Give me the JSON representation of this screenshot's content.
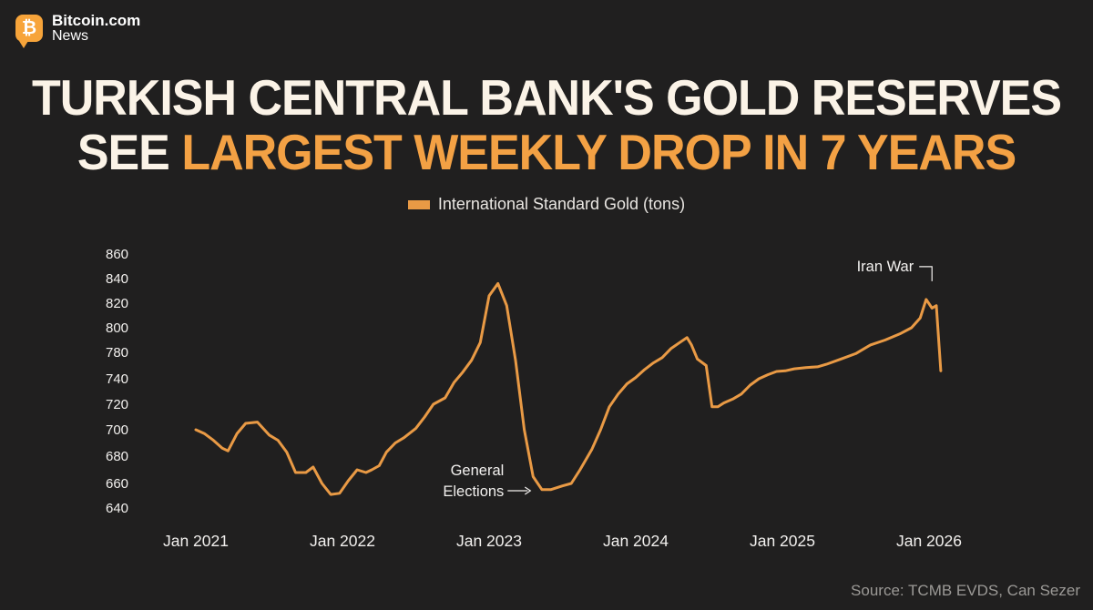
{
  "brand": {
    "name": "Bitcoin.com",
    "sub": "News",
    "badge_symbol": "₿",
    "accent": "#f7a43a"
  },
  "headline": {
    "line1": "TURKISH CENTRAL BANK'S GOLD RESERVES",
    "line2_prefix": "SEE ",
    "line2_highlight": "LARGEST WEEKLY DROP IN 7 YEARS",
    "color_light": "#fbf3e7",
    "color_accent": "#f3a144"
  },
  "source": "Source: TCMB EVDS, Can Sezer",
  "chart_data": {
    "type": "line",
    "title": "",
    "xlabel": "",
    "ylabel": "",
    "legend": "top-center",
    "grid": false,
    "line_color": "#e99a45",
    "y_ticks": [
      860,
      840,
      820,
      800,
      780,
      740,
      720,
      700,
      680,
      660,
      640
    ],
    "x_ticks": [
      {
        "label": "Jan 2021",
        "x": 2021.0
      },
      {
        "label": "Jan 2022",
        "x": 2022.0
      },
      {
        "label": "Jan 2023",
        "x": 2023.0
      },
      {
        "label": "Jan 2024",
        "x": 2024.0
      },
      {
        "label": "Jan 2025",
        "x": 2025.0
      },
      {
        "label": "Jan 2026",
        "x": 2026.0
      }
    ],
    "series": [
      {
        "name": "International Standard Gold (tons)",
        "x": [
          2021.0,
          2021.06,
          2021.12,
          2021.18,
          2021.22,
          2021.28,
          2021.34,
          2021.42,
          2021.5,
          2021.56,
          2021.62,
          2021.68,
          2021.75,
          2021.8,
          2021.86,
          2021.92,
          2021.98,
          2022.04,
          2022.1,
          2022.16,
          2022.2,
          2022.25,
          2022.3,
          2022.36,
          2022.42,
          2022.5,
          2022.56,
          2022.62,
          2022.7,
          2022.76,
          2022.82,
          2022.88,
          2022.94,
          2023.0,
          2023.06,
          2023.12,
          2023.18,
          2023.24,
          2023.3,
          2023.36,
          2023.42,
          2023.5,
          2023.56,
          2023.62,
          2023.7,
          2023.76,
          2023.82,
          2023.88,
          2023.94,
          2024.0,
          2024.06,
          2024.12,
          2024.18,
          2024.24,
          2024.3,
          2024.35,
          2024.38,
          2024.42,
          2024.48,
          2024.52,
          2024.56,
          2024.6,
          2024.66,
          2024.72,
          2024.78,
          2024.84,
          2024.9,
          2024.96,
          2025.02,
          2025.08,
          2025.16,
          2025.24,
          2025.3,
          2025.4,
          2025.5,
          2025.6,
          2025.7,
          2025.8,
          2025.88,
          2025.94,
          2025.98,
          2026.02,
          2026.05,
          2026.08
        ],
        "values": [
          700,
          697,
          692,
          686,
          684,
          697,
          705,
          706,
          696,
          692,
          683,
          668,
          668,
          672,
          660,
          651,
          652,
          662,
          670,
          668,
          670,
          673,
          683,
          690,
          694,
          701,
          710,
          720,
          725,
          737,
          750,
          768,
          788,
          826,
          836,
          818,
          768,
          700,
          665,
          655,
          655,
          658,
          660,
          670,
          685,
          700,
          718,
          728,
          736,
          742,
          754,
          764,
          772,
          783,
          788,
          792,
          786,
          770,
          760,
          718,
          718,
          721,
          724,
          728,
          735,
          740,
          746,
          751,
          752,
          755,
          757,
          758,
          762,
          770,
          778,
          786,
          790,
          795,
          800,
          808,
          823,
          816,
          818,
          752
        ]
      }
    ],
    "annotations": [
      {
        "lines": [
          "General",
          "Elections"
        ],
        "x": 2023.3,
        "y": 664
      },
      {
        "lines": [
          "Iran War"
        ],
        "x": 2026.02,
        "y": 826
      }
    ]
  }
}
